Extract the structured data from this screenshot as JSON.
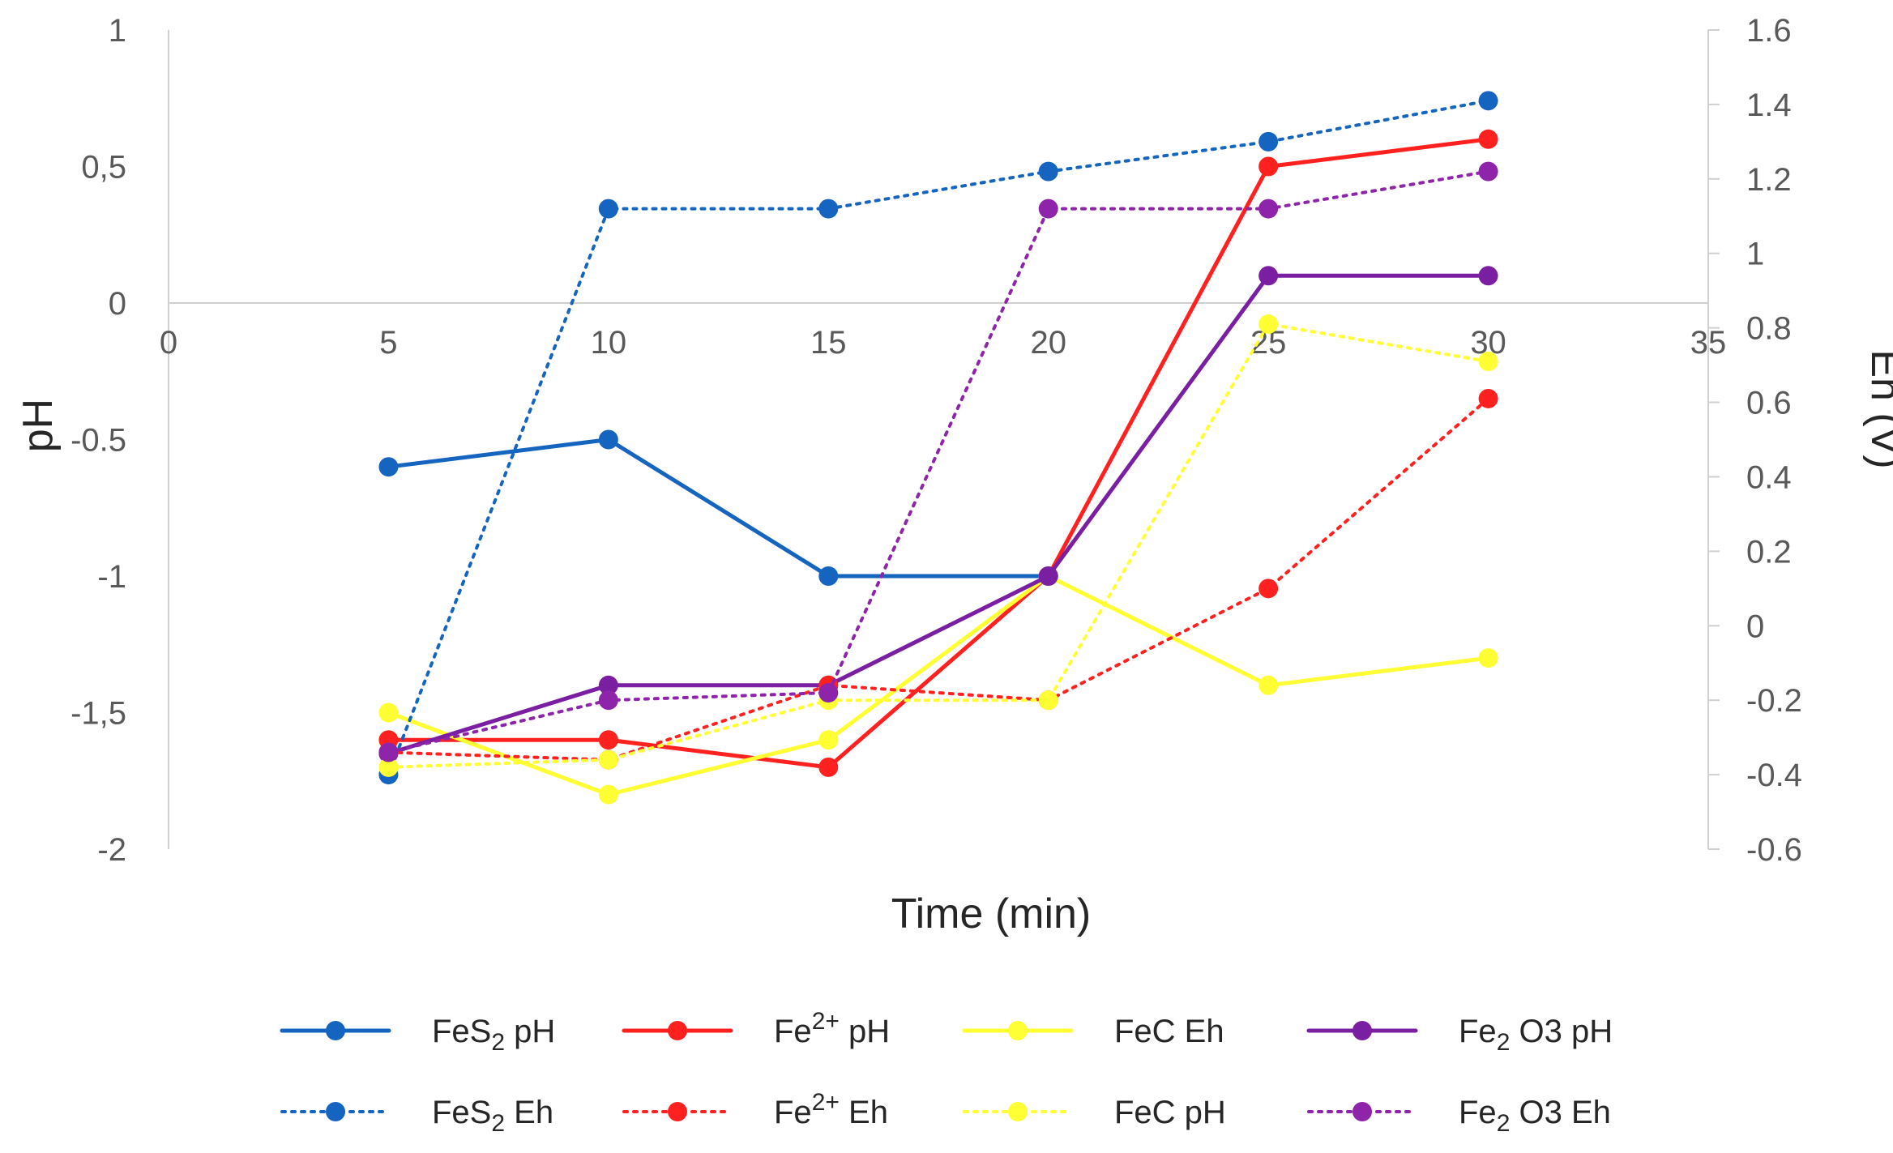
{
  "chart_data": {
    "type": "line",
    "title": "",
    "xlabel": "Time (min)",
    "ylabel_left": "pH",
    "ylabel_right": "Eh (V)",
    "xlim": [
      0,
      35
    ],
    "ylim_left": [
      -2,
      1
    ],
    "ylim_right": [
      -0.6,
      1.6
    ],
    "x_ticks": [
      "0",
      "5",
      "10",
      "15",
      "20",
      "25",
      "30",
      "35"
    ],
    "y_left_ticks": [
      "1",
      "0,5",
      "0",
      "-0.5",
      "-1",
      "-1,5",
      "-2"
    ],
    "y_left_tick_values": [
      1,
      0.5,
      0,
      -0.5,
      -1,
      -1.5,
      -2
    ],
    "y_right_ticks": [
      "1.6",
      "1.4",
      "1.2",
      "1",
      "0.8",
      "0.6",
      "0.4",
      "0.2",
      "0",
      "-0.2",
      "-0.4",
      "-0.6"
    ],
    "y_right_tick_values": [
      1.6,
      1.4,
      1.2,
      1.0,
      0.8,
      0.6,
      0.4,
      0.2,
      0.0,
      -0.2,
      -0.4,
      -0.6
    ],
    "x": [
      5,
      10,
      15,
      20,
      25,
      30
    ],
    "series": [
      {
        "id": "fes2-ph",
        "legend_base": "FeS",
        "legend_sub": "2",
        "legend_sup": "",
        "legend_tail": " pH",
        "axis": "left",
        "style": "solid",
        "color": "#1565C0",
        "values": [
          -0.6,
          -0.5,
          -1.0,
          -1.0,
          null,
          null
        ]
      },
      {
        "id": "fe2-ph",
        "legend_base": "Fe",
        "legend_sub": "",
        "legend_sup": "2+",
        "legend_tail": " pH",
        "axis": "left",
        "style": "solid",
        "color": "#FF2020",
        "values": [
          -1.6,
          -1.6,
          -1.7,
          -1.0,
          0.5,
          0.6
        ]
      },
      {
        "id": "fec-eh-solid",
        "legend_base": "FeC Eh",
        "legend_sub": "",
        "legend_sup": "",
        "legend_tail": "",
        "axis": "left",
        "style": "solid",
        "color": "#FFFF33",
        "values": [
          -1.5,
          -1.8,
          -1.6,
          -1.0,
          -1.4,
          -1.3
        ]
      },
      {
        "id": "fe2o3-ph",
        "legend_base": "Fe",
        "legend_sub": "2",
        "legend_sup": "",
        "legend_tail": " O3 pH",
        "axis": "left",
        "style": "solid",
        "color": "#7B1FA2",
        "values": [
          -1.65,
          -1.4,
          -1.4,
          -1.0,
          0.1,
          0.1
        ]
      },
      {
        "id": "fes2-eh",
        "legend_base": "FeS",
        "legend_sub": "2",
        "legend_sup": "",
        "legend_tail": " Eh",
        "axis": "right",
        "style": "dotted",
        "color": "#1565C0",
        "values": [
          -0.4,
          1.12,
          1.12,
          1.22,
          1.3,
          1.41
        ]
      },
      {
        "id": "fe2-eh",
        "legend_base": "Fe",
        "legend_sub": "",
        "legend_sup": "2+",
        "legend_tail": " Eh",
        "axis": "right",
        "style": "dotted",
        "color": "#FF2020",
        "values": [
          -0.34,
          -0.36,
          -0.16,
          -0.2,
          0.1,
          0.61
        ]
      },
      {
        "id": "fec-ph-dotted",
        "legend_base": "FeC pH",
        "legend_sub": "",
        "legend_sup": "",
        "legend_tail": "",
        "axis": "right",
        "style": "dotted",
        "color": "#FFFF33",
        "values": [
          -0.38,
          -0.36,
          -0.2,
          -0.2,
          0.81,
          0.71
        ]
      },
      {
        "id": "fe2o3-eh",
        "legend_base": "Fe",
        "legend_sub": "2",
        "legend_sup": "",
        "legend_tail": " O3 Eh",
        "axis": "right",
        "style": "dotted",
        "color": "#8E24AA",
        "values": [
          -0.34,
          -0.2,
          -0.18,
          1.12,
          1.12,
          1.22
        ]
      }
    ]
  }
}
